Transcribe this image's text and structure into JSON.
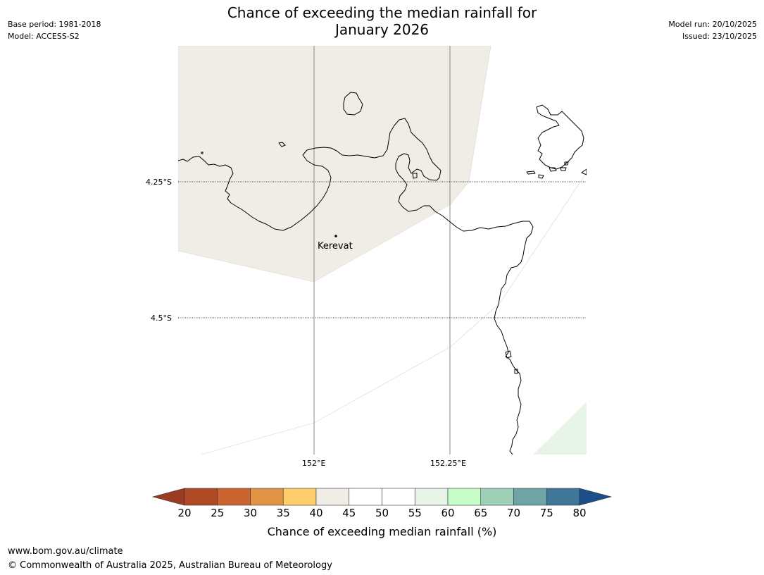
{
  "header": {
    "title_line1": "Chance of exceeding the median rainfall for",
    "title_line2": "January 2026",
    "base_period": "Base period: 1981-2018",
    "model": "Model: ACCESS-S2",
    "model_run": "Model run: 20/10/2025",
    "issued": "Issued: 23/10/2025"
  },
  "map": {
    "latitude_labels": [
      "4.25°S",
      "4.5°S"
    ],
    "longitude_labels": [
      "152°E",
      "152.25°E"
    ],
    "place_label": "Kerevat",
    "icons": {
      "place_marker": "dot-marker-icon"
    },
    "colors": {
      "land_shade_35_40": "#f0ece6",
      "land_shade_55_60": "#e9f4e8",
      "coast": "#000000",
      "gridline": "#888888"
    }
  },
  "colorbar": {
    "label": "Chance of exceeding median rainfall (%)",
    "ticks": [
      "20",
      "25",
      "30",
      "35",
      "40",
      "45",
      "50",
      "55",
      "60",
      "65",
      "70",
      "75",
      "80"
    ],
    "colors": [
      "#b04a25",
      "#cc6430",
      "#e19445",
      "#fece6a",
      "#f0ece6",
      "#ffffff",
      "#ffffff",
      "#e9f4e8",
      "#c7fdc9",
      "#9dd0b7",
      "#6fa5a6",
      "#3f7799"
    ],
    "under_color": "#9c3a22",
    "over_color": "#1a4f8a"
  },
  "footer": {
    "url": "www.bom.gov.au/climate",
    "copyright": "© Commonwealth of Australia 2025, Australian Bureau of Meteorology"
  }
}
